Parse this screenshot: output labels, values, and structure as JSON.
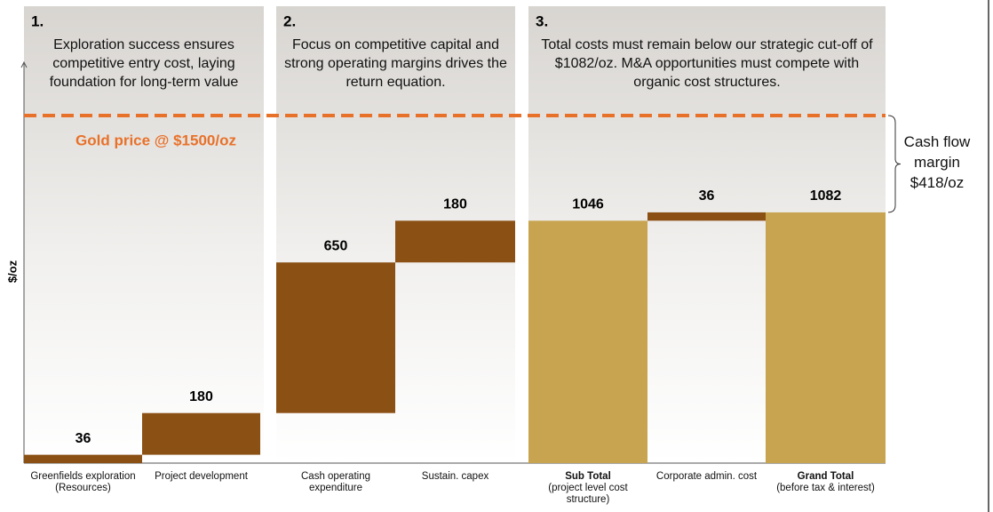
{
  "chart_data": {
    "type": "waterfall",
    "y_label": "$/oz",
    "categories": [
      "Greenfields exploration (Resources)",
      "Project development",
      "Cash operating expenditure",
      "Sustain. capex",
      "Sub Total",
      "Corporate admin. cost",
      "Grand Total"
    ],
    "category_notes": [
      null,
      null,
      null,
      null,
      "(project level cost structure)",
      null,
      "(before tax & interest)"
    ],
    "values": [
      36,
      180,
      650,
      180,
      1046,
      36,
      1082
    ],
    "bar_kinds": [
      "step",
      "step",
      "step",
      "step",
      "total",
      "step",
      "total"
    ],
    "colors": {
      "step": "#8b5014",
      "total": "#c8a450"
    },
    "ylim": [
      0,
      1730
    ],
    "reference_line": {
      "value": 1500,
      "label": "Gold price @ $1500/oz",
      "color": "#e8712a"
    },
    "margin_annotation": {
      "text": "Cash flow margin",
      "value": 418,
      "value_label": "$418/oz"
    },
    "panels": [
      {
        "number": "1.",
        "text": "Exploration success ensures competitive entry cost, laying foundation for long-term value"
      },
      {
        "number": "2.",
        "text": "Focus on competitive capital and strong operating margins drives the return equation."
      },
      {
        "number": "3.",
        "text": "Total costs must remain below our strategic cut-off of $1082/oz. M&A opportunities must compete with organic cost structures."
      }
    ]
  }
}
